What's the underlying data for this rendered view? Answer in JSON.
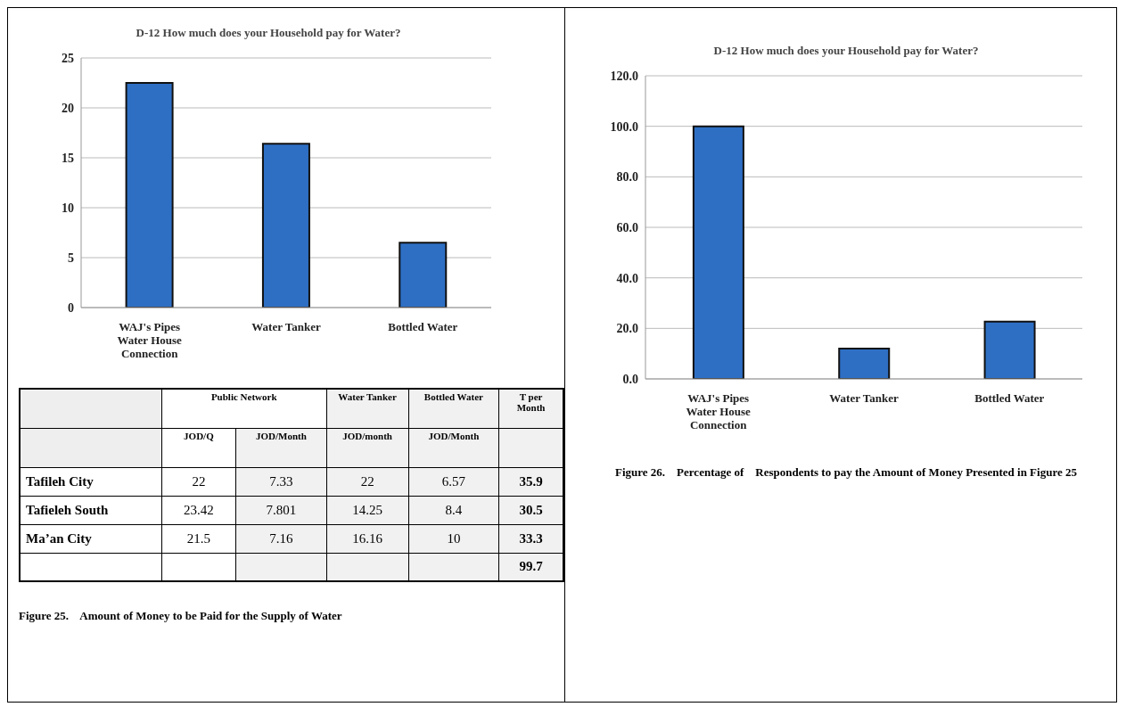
{
  "chart_data": [
    {
      "type": "bar",
      "title": "D-12 How much does your Household pay for Water?",
      "categories": [
        "WAJ's Pipes Water House Connection",
        "Water Tanker",
        "Bottled Water"
      ],
      "values": [
        22.5,
        16.4,
        6.5
      ],
      "color": "#2e6fc4",
      "ylim": [
        0,
        25
      ],
      "yticks": [
        0,
        5,
        10,
        15,
        20,
        25
      ],
      "grid": "y",
      "legend": false
    },
    {
      "type": "other",
      "cell_labels": [
        [
          null,
          "Public Network",
          null,
          "Water Tanker",
          "Bottled Water",
          "T per Month"
        ],
        [
          null,
          "JOD/Q",
          "JOD/Month",
          "JOD/month",
          "JOD/Month",
          null
        ],
        [
          "Tafileh City",
          "22",
          "7.33",
          "22",
          "6.57",
          "35.9"
        ],
        [
          "Tafieleh South",
          "23.42",
          "7.801",
          "14.25",
          "8.4",
          "30.5"
        ],
        [
          "Ma’an City",
          "21.5",
          "7.16",
          "16.16",
          "10",
          "33.3"
        ],
        [
          null,
          null,
          null,
          null,
          null,
          "99.7"
        ]
      ],
      "annotations": [
        "Figure 25.    Amount of Money to be Paid for the Supply of Water"
      ]
    },
    {
      "type": "bar",
      "title": "D-12 How much does your Household pay for Water?",
      "categories": [
        "WAJ's Pipes Water House Connection",
        "Water Tanker",
        "Bottled Water"
      ],
      "values": [
        100,
        12,
        22.7
      ],
      "color": "#2e6fc4",
      "ylim": [
        0,
        120
      ],
      "yticks": [
        {
          "value": 0,
          "label": "0.0"
        },
        {
          "value": 20,
          "label": "20.0"
        },
        {
          "value": 40,
          "label": "40.0"
        },
        {
          "value": 60,
          "label": "60.0"
        },
        {
          "value": 80,
          "label": "80.0"
        },
        {
          "value": 100,
          "label": "100.0"
        },
        {
          "value": 120,
          "label": "120.0"
        }
      ],
      "grid": "y",
      "legend": false,
      "annotations": [
        "Figure 26.    Percentage of    Respondents to pay the Amount of Money Presented in Figure 25"
      ]
    }
  ]
}
